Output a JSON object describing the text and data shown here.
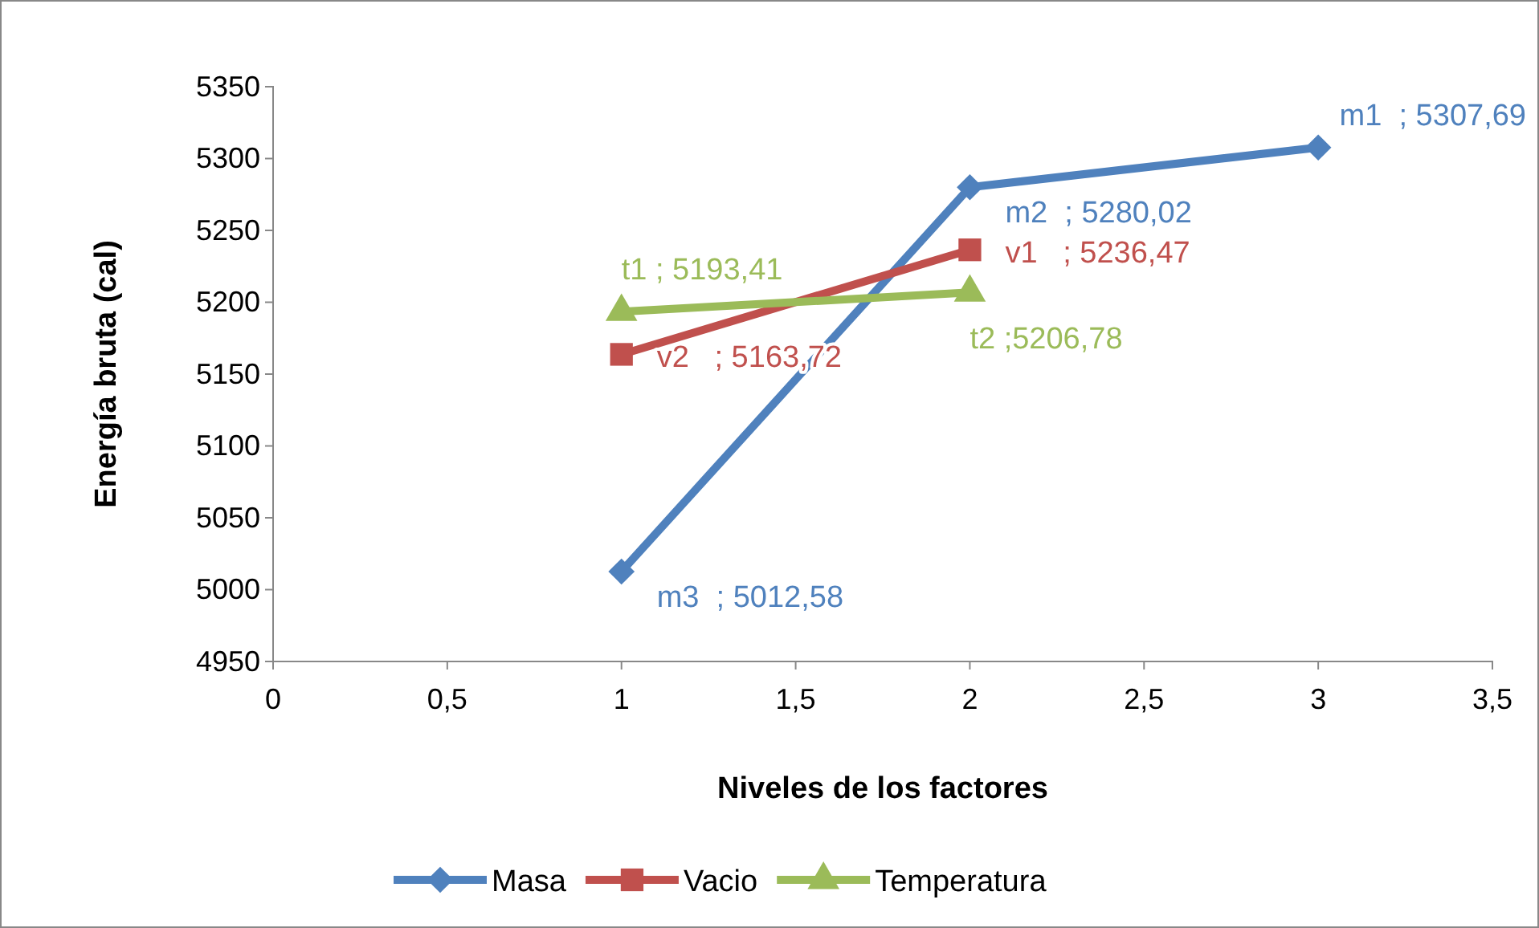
{
  "chart_data": {
    "type": "line",
    "xlabel": "Niveles de los factores",
    "ylabel": "Energía bruta (cal)",
    "xlim": [
      0,
      3.5
    ],
    "xticks": [
      {
        "value": 0,
        "label": "0"
      },
      {
        "value": 0.5,
        "label": "0,5"
      },
      {
        "value": 1,
        "label": "1"
      },
      {
        "value": 1.5,
        "label": "1,5"
      },
      {
        "value": 2,
        "label": "2"
      },
      {
        "value": 2.5,
        "label": "2,5"
      },
      {
        "value": 3,
        "label": "3"
      },
      {
        "value": 3.5,
        "label": "3,5"
      }
    ],
    "ylim": [
      4950,
      5350
    ],
    "yticks": [
      4950,
      5000,
      5050,
      5100,
      5150,
      5200,
      5250,
      5300,
      5350
    ],
    "grid": false,
    "legend": "bottom",
    "line_style": "solid",
    "series": [
      {
        "name": "Masa",
        "color": "#4f81bd",
        "marker": "diamond",
        "x": [
          1,
          2,
          3
        ],
        "values": [
          5012.58,
          5280.02,
          5307.69
        ],
        "value_labels": [
          "m3  ; 5012,58",
          "m2  ; 5280,02",
          "m1  ; 5307,69"
        ]
      },
      {
        "name": "Vacio",
        "color": "#c0504d",
        "marker": "square",
        "x": [
          1,
          2
        ],
        "values": [
          5163.72,
          5236.47
        ],
        "value_labels": [
          "v2   ; 5163,72",
          "v1   ; 5236,47"
        ]
      },
      {
        "name": "Temperatura",
        "color": "#9bbb59",
        "marker": "triangle",
        "x": [
          1,
          2
        ],
        "values": [
          5193.41,
          5206.78
        ],
        "value_labels": [
          "t1 ; 5193,41",
          "t2 ;5206,78"
        ]
      }
    ]
  }
}
